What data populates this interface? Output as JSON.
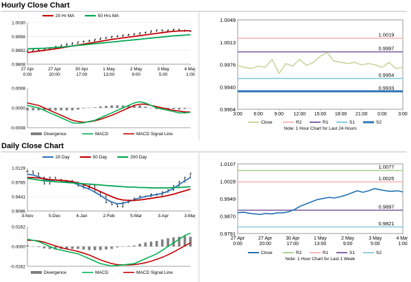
{
  "sections": {
    "hourly_title": "Hourly Close Chart",
    "daily_title": "Daily Close Chart"
  },
  "colors": {
    "ma_short": "#c00000",
    "ma_long": "#00a651",
    "macd": "#00b050",
    "signal": "#c00000",
    "divergence": "#7f7f7f",
    "close": "#c4d79b",
    "close_daily": "#1f6fb2",
    "r2": "#a9d18e",
    "r2_hourly": "#f4b6b6",
    "r1_hourly": "#8064a2",
    "r1": "#f4b6b6",
    "s1": "#7fcfdc",
    "s2": "#2e75b6",
    "s2_daily": "#92cddc"
  },
  "chart_data": [
    {
      "id": "hourly-price",
      "type": "line",
      "legend": [
        "20 Hr MA",
        "50 Hrs MA"
      ],
      "y_tick_labels": [
        "1.0030",
        "0.9956",
        "0.9882",
        "0.9808"
      ],
      "ylim": [
        0.9808,
        1.003
      ],
      "x_tick_labels": [
        "27 Apr\n0:00",
        "27 Apr\n20:00",
        "30 Apr\n17:00",
        "1 May\n13:00",
        "2 May\n9:00",
        "3 May\n5:00",
        "4 May\n1:00"
      ],
      "series": [
        {
          "name": "Close",
          "values": [
            0.9878,
            0.9885,
            0.9882,
            0.989,
            0.9895,
            0.9902,
            0.991,
            0.9915,
            0.992,
            0.9926,
            0.993,
            0.9934,
            0.994,
            0.9946,
            0.995,
            0.9956,
            0.9958,
            0.9962,
            0.9966,
            0.997,
            0.9975,
            0.9978,
            0.9985,
            0.999,
            0.9986,
            0.999,
            0.9993,
            0.9988,
            0.9985,
            0.9984
          ]
        },
        {
          "name": "20 Hr MA",
          "values": [
            0.987,
            0.9874,
            0.9878,
            0.9882,
            0.9886,
            0.989,
            0.9895,
            0.99,
            0.9905,
            0.991,
            0.9915,
            0.992,
            0.9925,
            0.993,
            0.9935,
            0.994,
            0.9944,
            0.9948,
            0.9952,
            0.9956,
            0.996,
            0.9964,
            0.9968,
            0.9972,
            0.9976,
            0.998,
            0.9983,
            0.9985,
            0.9986,
            0.9986
          ]
        },
        {
          "name": "50 Hrs MA",
          "values": [
            0.989,
            0.9891,
            0.9892,
            0.9893,
            0.9895,
            0.9897,
            0.9899,
            0.9902,
            0.9905,
            0.9908,
            0.9911,
            0.9914,
            0.9917,
            0.992,
            0.9923,
            0.9926,
            0.9929,
            0.9932,
            0.9935,
            0.9938,
            0.9941,
            0.9944,
            0.9947,
            0.995,
            0.9953,
            0.9956,
            0.9959,
            0.9961,
            0.9963,
            0.9965
          ]
        }
      ]
    },
    {
      "id": "hourly-macd",
      "type": "line",
      "legend": [
        "Divergence",
        "MACD",
        "MACD Signal Line"
      ],
      "y_tick_labels": [
        "0.0008",
        "0.0000",
        "-0.0008"
      ],
      "ylim": [
        -0.0008,
        0.0008
      ],
      "series": [
        {
          "name": "MACD",
          "values": [
            0.0001,
            5e-05,
            0.0,
            -0.0001,
            -0.0002,
            -0.0003,
            -0.0004,
            -0.0005,
            -0.0006,
            -0.00062,
            -0.0006,
            -0.00055,
            -0.0005,
            -0.0004,
            -0.0003,
            -0.0002,
            -0.0001,
            0.0,
            0.0001,
            0.0002,
            0.00025,
            0.0002,
            0.0001,
            0.0,
            -5e-05,
            -0.0001,
            -0.00015,
            -0.0002,
            -0.0002,
            -0.00018
          ]
        },
        {
          "name": "MACD Signal Line",
          "values": [
            0.0002,
            0.00015,
            0.0001,
            0.0,
            -0.0001,
            -0.0002,
            -0.0003,
            -0.0004,
            -0.0005,
            -0.00055,
            -0.00058,
            -0.00056,
            -0.00052,
            -0.00046,
            -0.00038,
            -0.0003,
            -0.0002,
            -0.0001,
            0.0,
            0.0001,
            0.00015,
            0.00015,
            0.0001,
            5e-05,
            0.0,
            -5e-05,
            -0.0001,
            -0.00013,
            -0.00016,
            -0.00017
          ]
        },
        {
          "name": "Divergence",
          "values": [
            -0.0001,
            -0.0001,
            -0.0001,
            -0.0001,
            -0.0001,
            -0.0001,
            -0.0001,
            -0.0001,
            -0.0001,
            -7e-05,
            -2e-05,
            1e-05,
            2e-05,
            6e-05,
            8e-05,
            0.0001,
            0.0001,
            0.0001,
            0.0001,
            0.0001,
            0.0001,
            5e-05,
            0.0,
            -5e-05,
            -5e-05,
            -5e-05,
            -5e-05,
            -7e-05,
            -4e-05,
            -1e-05
          ]
        }
      ]
    },
    {
      "id": "hourly-levels",
      "type": "line",
      "y_tick_labels": [
        "1.0049",
        "1.0013",
        "0.9976",
        "0.9940",
        "0.9904"
      ],
      "ylim": [
        0.9904,
        1.0049
      ],
      "x_tick_labels": [
        "3:00",
        "6:00",
        "9:00",
        "12:00",
        "15:00",
        "18:00",
        "21:00",
        "0:00",
        "3:00"
      ],
      "legend": [
        "Close",
        "R2",
        "R1",
        "S1",
        "S2"
      ],
      "note": "Note: 1 Hour Chart for Last 24 Hours",
      "levels": [
        {
          "name": "R2",
          "value": 1.0019,
          "label": "1.0019"
        },
        {
          "name": "R1",
          "value": 0.9997,
          "label": "0.9997"
        },
        {
          "name": "S1",
          "value": 0.9954,
          "label": "0.9954"
        },
        {
          "name": "S2",
          "value": 0.9933,
          "label": "0.9933"
        }
      ],
      "series": [
        {
          "name": "Close",
          "values": [
            0.9975,
            0.9972,
            0.997,
            0.9974,
            0.9972,
            0.9985,
            0.9962,
            0.9978,
            0.9974,
            0.9985,
            0.9975,
            0.998,
            0.999,
            0.9996,
            0.9982,
            0.998,
            0.9978,
            0.998,
            0.9976,
            0.9978,
            0.9976,
            0.9972,
            0.998,
            0.997,
            0.9972
          ]
        }
      ]
    },
    {
      "id": "daily-price",
      "type": "line",
      "legend": [
        "20 Day",
        "50 Day",
        "200 Day"
      ],
      "y_tick_labels": [
        "1.0129",
        "0.9785",
        "0.9441",
        "0.9096"
      ],
      "ylim": [
        0.9096,
        1.0129
      ],
      "x_tick_labels": [
        "3-Nov",
        "5-Dec",
        "4-Jan",
        "2-Feb",
        "5-Mar",
        "3-Apr",
        "3-May"
      ],
      "series": [
        {
          "name": "Close",
          "values": [
            1.005,
            1.0,
            0.99,
            0.975,
            0.99,
            0.985,
            0.98,
            0.982,
            0.978,
            0.97,
            0.965,
            0.97,
            0.955,
            0.945,
            0.93,
            0.925,
            0.92,
            0.93,
            0.935,
            0.94,
            0.945,
            0.945,
            0.95,
            0.948,
            0.955,
            0.96,
            0.97,
            0.98,
            0.99,
            1.0
          ]
        },
        {
          "name": "20 Day",
          "values": [
            0.998,
            0.996,
            0.992,
            0.985,
            0.982,
            0.984,
            0.983,
            0.981,
            0.978,
            0.973,
            0.967,
            0.962,
            0.955,
            0.947,
            0.938,
            0.931,
            0.927,
            0.928,
            0.932,
            0.937,
            0.941,
            0.944,
            0.947,
            0.949,
            0.952,
            0.957,
            0.964,
            0.973,
            0.982,
            0.99
          ]
        },
        {
          "name": "50 Day",
          "values": [
            0.99,
            0.99,
            0.989,
            0.987,
            0.985,
            0.984,
            0.983,
            0.982,
            0.98,
            0.977,
            0.973,
            0.968,
            0.962,
            0.956,
            0.95,
            0.944,
            0.939,
            0.936,
            0.935,
            0.935,
            0.936,
            0.938,
            0.94,
            0.942,
            0.944,
            0.947,
            0.95,
            0.954,
            0.958,
            0.962
          ]
        },
        {
          "name": "200 Day",
          "values": [
            0.988,
            0.986,
            0.984,
            0.982,
            0.981,
            0.98,
            0.979,
            0.978,
            0.977,
            0.976,
            0.975,
            0.974,
            0.973,
            0.972,
            0.971,
            0.97,
            0.969,
            0.968,
            0.967,
            0.967,
            0.966,
            0.966,
            0.965,
            0.965,
            0.965,
            0.965,
            0.966,
            0.966,
            0.967,
            0.968
          ]
        }
      ]
    },
    {
      "id": "daily-macd",
      "type": "line",
      "legend": [
        "Divergence",
        "MACD",
        "MACD Signal Line"
      ],
      "y_tick_labels": [
        "0.0162",
        "0.0000",
        "-0.0162"
      ],
      "ylim": [
        -0.0162,
        0.0162
      ],
      "series": [
        {
          "name": "MACD",
          "values": [
            0.006,
            0.005,
            0.004,
            0.002,
            0.0,
            -0.002,
            -0.003,
            -0.004,
            -0.005,
            -0.006,
            -0.008,
            -0.01,
            -0.012,
            -0.014,
            -0.015,
            -0.016,
            -0.0155,
            -0.015,
            -0.0145,
            -0.014,
            -0.012,
            -0.01,
            -0.008,
            -0.006,
            -0.003,
            0.0,
            0.003,
            0.006,
            0.009,
            0.011
          ]
        },
        {
          "name": "MACD Signal Line",
          "values": [
            0.005,
            0.005,
            0.0045,
            0.0035,
            0.002,
            0.0005,
            -0.001,
            -0.002,
            -0.003,
            -0.004,
            -0.0055,
            -0.007,
            -0.009,
            -0.011,
            -0.0125,
            -0.014,
            -0.0148,
            -0.015,
            -0.015,
            -0.0148,
            -0.0142,
            -0.0133,
            -0.012,
            -0.0105,
            -0.0088,
            -0.0068,
            -0.0045,
            -0.002,
            0.0005,
            0.003
          ]
        },
        {
          "name": "Divergence",
          "values": [
            0.001,
            0.0,
            -0.0005,
            -0.0015,
            -0.002,
            -0.0025,
            -0.002,
            -0.002,
            -0.002,
            -0.002,
            -0.0025,
            -0.003,
            -0.003,
            -0.003,
            -0.0025,
            -0.002,
            -0.0007,
            0.0,
            0.0005,
            0.0008,
            0.0022,
            0.0033,
            0.004,
            0.0045,
            0.0058,
            0.0068,
            0.0075,
            0.008,
            0.0085,
            0.008
          ]
        }
      ]
    },
    {
      "id": "daily-levels",
      "type": "line",
      "y_tick_labels": [
        "1.0107",
        "1.0028",
        "0.9949",
        "0.9870",
        "0.9791"
      ],
      "ylim": [
        0.9791,
        1.0107
      ],
      "x_tick_labels": [
        "27 Apr\n0:00",
        "27 Apr\n20:00",
        "30 Apr\n17:00",
        "1 May\n13:00",
        "2 May\n9:00",
        "3 May\n5:00",
        "4 May\n1:00"
      ],
      "legend": [
        "Close",
        "R2",
        "R1",
        "S1",
        "S2"
      ],
      "note": "Note: 1 Hour Chart for Last 1 Week",
      "levels": [
        {
          "name": "R2",
          "value": 1.0077,
          "label": "1.0077"
        },
        {
          "name": "R1",
          "value": 1.0025,
          "label": "1.0025"
        },
        {
          "name": "S1",
          "value": 0.9897,
          "label": "0.9897"
        },
        {
          "name": "S2",
          "value": 0.9821,
          "label": "0.9821"
        }
      ],
      "series": [
        {
          "name": "Close",
          "values": [
            0.9885,
            0.9888,
            0.9883,
            0.988,
            0.9878,
            0.9882,
            0.988,
            0.9885,
            0.9885,
            0.989,
            0.99,
            0.9915,
            0.9925,
            0.9935,
            0.9945,
            0.995,
            0.9955,
            0.9952,
            0.9958,
            0.9965,
            0.9975,
            0.9985,
            0.9978,
            0.9985,
            0.9995,
            0.999,
            0.9985,
            0.9982,
            0.9985,
            0.998
          ]
        }
      ]
    }
  ]
}
